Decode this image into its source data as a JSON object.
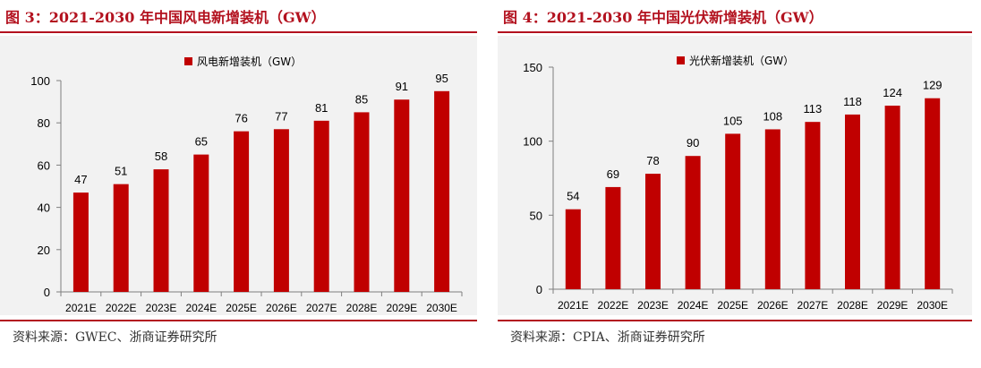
{
  "chart_data": [
    {
      "type": "bar",
      "title": "图 3：2021-2030 年中国风电新增装机（GW）",
      "legend": "风电新增装机（GW）",
      "legend_position": "top-center",
      "categories": [
        "2021E",
        "2022E",
        "2023E",
        "2024E",
        "2025E",
        "2026E",
        "2027E",
        "2028E",
        "2029E",
        "2030E"
      ],
      "series": [
        {
          "name": "风电新增装机（GW）",
          "values": [
            47,
            51,
            58,
            65,
            76,
            77,
            81,
            85,
            91,
            95
          ]
        }
      ],
      "ylim": [
        0,
        100
      ],
      "yticks": [
        0,
        20,
        40,
        60,
        80,
        100
      ],
      "grid": false,
      "color": "#c00000",
      "source": "资料来源：GWEC、浙商证券研究所"
    },
    {
      "type": "bar",
      "title": "图 4：2021-2030 年中国光伏新增装机（GW）",
      "legend": "光伏新增装机（GW）",
      "legend_position": "top-center",
      "categories": [
        "2021E",
        "2022E",
        "2023E",
        "2024E",
        "2025E",
        "2026E",
        "2027E",
        "2028E",
        "2029E",
        "2030E"
      ],
      "series": [
        {
          "name": "光伏新增装机（GW）",
          "values": [
            54,
            69,
            78,
            90,
            105,
            108,
            113,
            118,
            124,
            129
          ]
        }
      ],
      "ylim": [
        0,
        150
      ],
      "yticks": [
        0,
        50,
        100,
        150
      ],
      "grid": false,
      "color": "#c00000",
      "source": "资料来源：CPIA、浙商证券研究所"
    }
  ]
}
